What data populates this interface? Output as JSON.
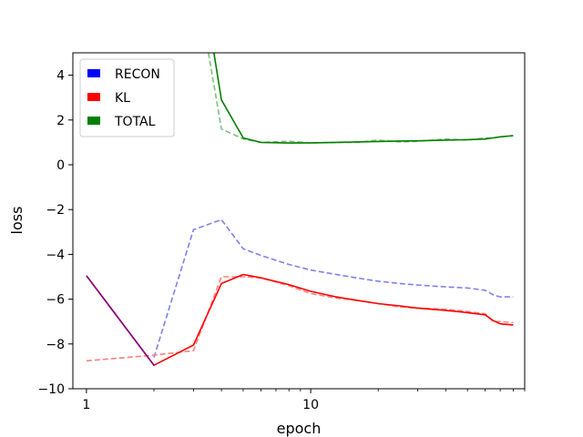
{
  "chart_data": {
    "type": "line",
    "title": "",
    "xlabel": "epoch",
    "ylabel": "loss",
    "xscale": "log",
    "xlim": [
      0.87,
      90
    ],
    "ylim": [
      -10,
      5
    ],
    "x_ticks": [
      1,
      10
    ],
    "x_tick_labels": [
      "1",
      "10"
    ],
    "y_ticks": [
      -10,
      -8,
      -6,
      -4,
      -2,
      0,
      2,
      4
    ],
    "y_tick_labels": [
      "−10",
      "−8",
      "−6",
      "−4",
      "−2",
      "0",
      "2",
      "4"
    ],
    "grid": false,
    "legend_position": "top-left",
    "legend": [
      {
        "label": "RECON",
        "color": "#0000ff"
      },
      {
        "label": "KL",
        "color": "#ff0000"
      },
      {
        "label": "TOTAL",
        "color": "#008000"
      }
    ],
    "series": [
      {
        "name": "RECON",
        "color": "#8080f0",
        "style": "dashed",
        "x": [
          2,
          3,
          4,
          5,
          6,
          8,
          10,
          13,
          16,
          20,
          25,
          30,
          40,
          50,
          60,
          65,
          70,
          80
        ],
        "y": [
          -8.6,
          -2.9,
          -2.45,
          -3.75,
          -4.05,
          -4.45,
          -4.7,
          -4.9,
          -5.05,
          -5.2,
          -5.3,
          -5.37,
          -5.45,
          -5.5,
          -5.6,
          -5.8,
          -5.9,
          -5.9
        ]
      },
      {
        "name": "KL",
        "color": "#ff8080",
        "style": "dashed",
        "x": [
          1,
          2,
          3,
          4,
          5,
          6,
          8,
          10,
          13,
          16,
          20,
          25,
          30,
          40,
          50,
          60,
          65,
          70,
          80
        ],
        "y": [
          -8.75,
          -8.5,
          -8.3,
          -5.0,
          -5.0,
          -5.05,
          -5.4,
          -5.75,
          -5.95,
          -6.05,
          -6.2,
          -6.35,
          -6.4,
          -6.45,
          -6.55,
          -6.65,
          -7.0,
          -7.0,
          -7.05
        ]
      },
      {
        "name": "TOTAL",
        "color": "#7fbf7f",
        "style": "dashed",
        "x": [
          3.5,
          4,
          5,
          6,
          8,
          10,
          13,
          16,
          20,
          25,
          30,
          40,
          50,
          60,
          65,
          70,
          80
        ],
        "y": [
          5.0,
          1.6,
          1.15,
          1.0,
          1.05,
          0.98,
          1.0,
          1.0,
          1.1,
          1.02,
          1.05,
          1.15,
          1.1,
          1.2,
          1.2,
          1.25,
          1.3
        ]
      },
      {
        "name": "KL",
        "color": "#ff0000",
        "style": "solid",
        "x": [
          1,
          2,
          3,
          4,
          5,
          6,
          8,
          10,
          13,
          16,
          20,
          25,
          30,
          40,
          50,
          60,
          65,
          70,
          80
        ],
        "y": [
          -4.95,
          -8.95,
          -8.05,
          -5.3,
          -4.9,
          -5.05,
          -5.35,
          -5.65,
          -5.9,
          -6.05,
          -6.2,
          -6.3,
          -6.4,
          -6.5,
          -6.6,
          -6.7,
          -6.95,
          -7.1,
          -7.15
        ]
      },
      {
        "name": "TOTAL",
        "color": "#008000",
        "style": "solid",
        "x": [
          3.7,
          4,
          5,
          6,
          8,
          10,
          13,
          16,
          20,
          25,
          30,
          40,
          50,
          60,
          65,
          70,
          80
        ],
        "y": [
          5.0,
          2.9,
          1.2,
          1.0,
          0.97,
          0.98,
          1.0,
          1.02,
          1.04,
          1.06,
          1.07,
          1.1,
          1.12,
          1.15,
          1.2,
          1.25,
          1.3
        ]
      },
      {
        "name": "RECON",
        "color": "#800080",
        "style": "solid",
        "x": [
          1,
          2
        ],
        "y": [
          -4.95,
          -8.95
        ]
      }
    ]
  }
}
